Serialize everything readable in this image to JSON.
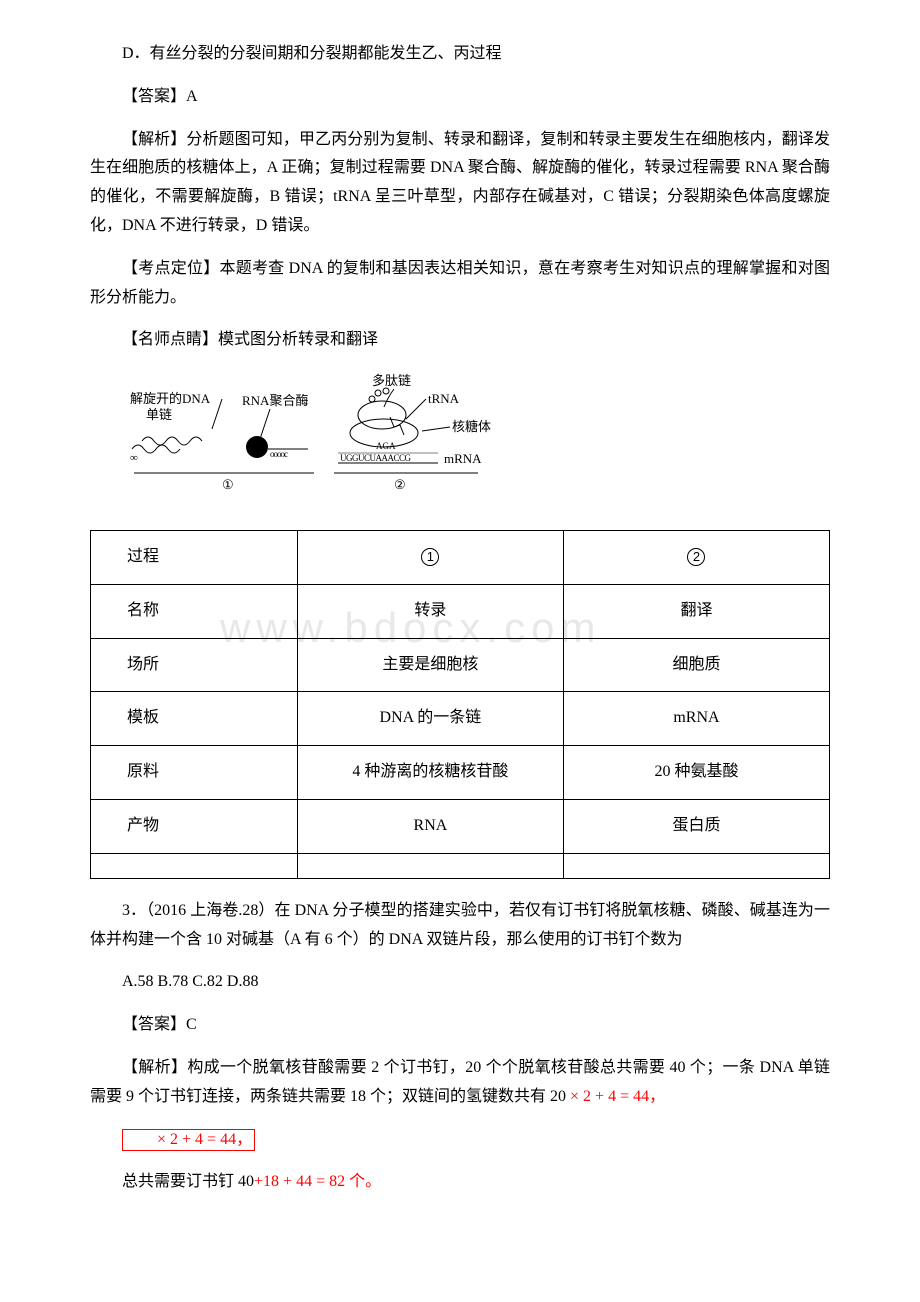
{
  "document": {
    "optionD": "D．有丝分裂的分裂间期和分裂期都能发生乙、丙过程",
    "answerLine": "【答案】A",
    "explanation": "【解析】分析题图可知，甲乙丙分别为复制、转录和翻译，复制和转录主要发生在细胞核内，翻译发生在细胞质的核糖体上，A 正确；复制过程需要 DNA 聚合酶、解旋酶的催化，转录过程需要 RNA 聚合酶的催化，不需要解旋酶，B 错误；tRNA 呈三叶草型，内部存在碱基对，C 错误；分裂期染色体高度螺旋化，DNA 不进行转录，D 错误。",
    "pointFix": "【考点定位】本题考查 DNA 的复制和基因表达相关知识，意在考察考生对知识点的理解掌握和对图形分析能力。",
    "teacherNote": "【名师点睛】模式图分析转录和翻译",
    "diagram": {
      "labels": {
        "unwound": "解旋开的DNA",
        "singleStrand": "单链",
        "rnaPoly": "RNA聚合酶",
        "polypeptide": "多肽链",
        "trna": "tRNA",
        "ribosome": "核糖体",
        "mrna": "mRNA",
        "codon1": "AGA",
        "codon2": "UGGUCUAAACCG",
        "mark1": "①",
        "mark2": "②"
      }
    },
    "table": {
      "rows": [
        {
          "h": "过程",
          "c1_isCircle": true,
          "c1": "1",
          "c2_isCircle": true,
          "c2": "2"
        },
        {
          "h": "名称",
          "c1": "转录",
          "c2": "翻译"
        },
        {
          "h": "场所",
          "c1": "主要是细胞核",
          "c2": "细胞质"
        },
        {
          "h": "模板",
          "c1": "DNA 的一条链",
          "c2": "mRNA"
        },
        {
          "h": "原料",
          "c1": "4 种游离的核糖核苷酸",
          "c2": "20 种氨基酸"
        },
        {
          "h": "产物",
          "c1": "RNA",
          "c2": "蛋白质"
        },
        {
          "h": "",
          "c1": "",
          "c2": ""
        }
      ]
    },
    "q3": {
      "stem": "3．（2016 上海卷.28）在 DNA 分子模型的搭建实验中，若仅有订书钉将脱氧核糖、磷酸、碱基连为一体并构建一个含 10 对碱基（A 有 6 个）的 DNA 双链片段，那么使用的订书钉个数为",
      "options": "A.58 B.78 C.82 D.88",
      "answer": "【答案】C",
      "explanation_pre": "【解析】构成一个脱氧核苷酸需要 2 个订书钉，20 个个脱氧核苷酸总共需要 40 个；一条 DNA 单链需要 9 个订书钉连接，两条链共需要 18 个；双链间的氢键数共有 20 ",
      "math1": "× 2 + 4 = 44，",
      "math2": "× 2 + 4 = 44，",
      "final_pre": "总共需要订书钉 40",
      "final_math": "+18 + 44 = 82 个。"
    },
    "watermark": "www.bdocx.com"
  },
  "style": {
    "watermarkTop": "590px",
    "watermarkLeft": "220px"
  }
}
